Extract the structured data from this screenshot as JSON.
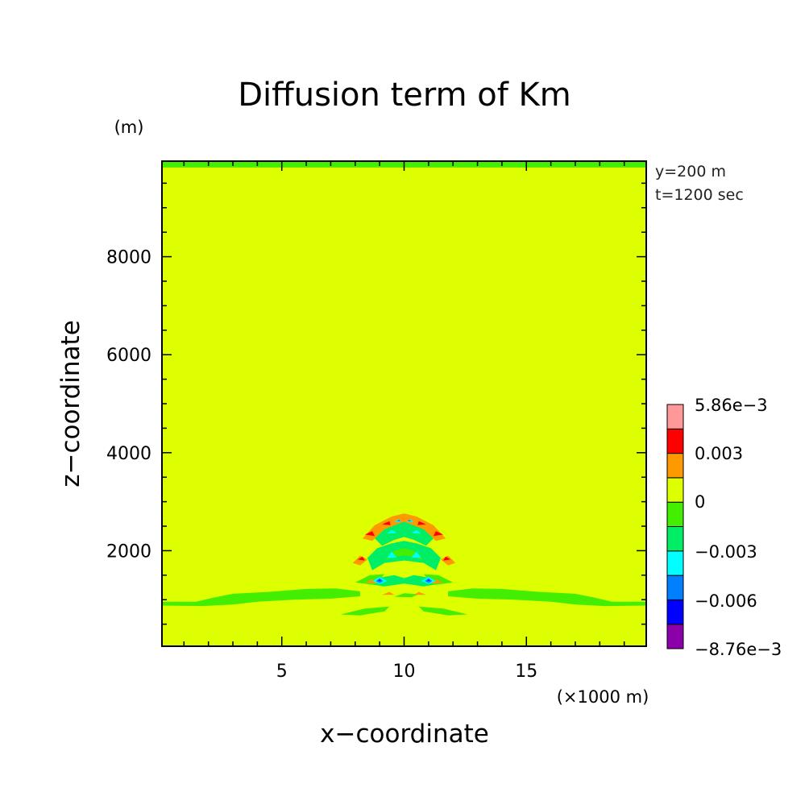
{
  "chart_data": {
    "type": "heatmap",
    "title": "Diffusion term of Km",
    "xlabel": "x−coordinate",
    "ylabel": "z−coordinate",
    "x_unit": "(×1000 m)",
    "y_unit": "(m)",
    "info": [
      "y=200 m",
      "t=1200 sec"
    ],
    "xlim": [
      0.1,
      19.9
    ],
    "ylim": [
      50,
      9950
    ],
    "x_ticks": [
      5,
      10,
      15
    ],
    "x_tick_labels": [
      "5",
      "10",
      "15"
    ],
    "y_ticks": [
      2000,
      4000,
      6000,
      8000
    ],
    "y_tick_labels": [
      "2000",
      "4000",
      "6000",
      "8000"
    ],
    "colorbar": {
      "levels": [
        -0.00876,
        -0.006,
        -0.0045,
        -0.003,
        -0.0015,
        0,
        0.0015,
        0.003,
        0.0045,
        0.00586
      ],
      "labels": [
        "5.86e−3",
        "0.003",
        "0",
        "−0.003",
        "−0.006",
        "−8.76e−3"
      ],
      "colors": [
        "#8b00aa",
        "#0000ff",
        "#0080ff",
        "#00ffff",
        "#00ee66",
        "#44ee00",
        "#ddff00",
        "#ff9900",
        "#ff0000",
        "#ff9999"
      ]
    },
    "background_level_color": "#ddff00",
    "regions": [
      {
        "name": "top-boundary-band",
        "color": "#44ee00",
        "points": [
          [
            0.1,
            9950
          ],
          [
            19.9,
            9950
          ],
          [
            19.9,
            9820
          ],
          [
            0.1,
            9820
          ]
        ]
      },
      {
        "name": "left-low-band",
        "color": "#44ee00",
        "points": [
          [
            0.1,
            960
          ],
          [
            1.5,
            960
          ],
          [
            2.2,
            1040
          ],
          [
            3,
            1120
          ],
          [
            4.5,
            1160
          ],
          [
            6,
            1220
          ],
          [
            7.2,
            1230
          ],
          [
            8.2,
            1170
          ],
          [
            8.2,
            1070
          ],
          [
            7,
            1020
          ],
          [
            5.5,
            1000
          ],
          [
            4,
            960
          ],
          [
            3,
            900
          ],
          [
            1.8,
            870
          ],
          [
            0.1,
            880
          ]
        ]
      },
      {
        "name": "right-low-band",
        "color": "#44ee00",
        "points": [
          [
            19.9,
            960
          ],
          [
            18.5,
            960
          ],
          [
            17.8,
            1040
          ],
          [
            17,
            1120
          ],
          [
            15.5,
            1160
          ],
          [
            14,
            1220
          ],
          [
            12.8,
            1230
          ],
          [
            11.8,
            1170
          ],
          [
            11.8,
            1070
          ],
          [
            13,
            1020
          ],
          [
            14.5,
            1000
          ],
          [
            16,
            960
          ],
          [
            17,
            900
          ],
          [
            18.2,
            870
          ],
          [
            19.9,
            880
          ]
        ]
      },
      {
        "name": "lower-left-patch",
        "color": "#44ee00",
        "points": [
          [
            7.4,
            700
          ],
          [
            8.4,
            820
          ],
          [
            9.4,
            860
          ],
          [
            9.2,
            760
          ],
          [
            8.2,
            680
          ]
        ]
      },
      {
        "name": "lower-right-patch",
        "color": "#44ee00",
        "points": [
          [
            12.6,
            700
          ],
          [
            11.6,
            820
          ],
          [
            10.6,
            860
          ],
          [
            10.8,
            760
          ],
          [
            11.8,
            680
          ]
        ]
      },
      {
        "name": "lower-center-patch",
        "color": "#44ee00",
        "points": [
          [
            9.6,
            1060
          ],
          [
            10,
            1130
          ],
          [
            10.6,
            1110
          ],
          [
            10.3,
            1050
          ]
        ]
      },
      {
        "name": "upper-arch-orange",
        "color": "#ff9900",
        "points": [
          [
            8.3,
            2250
          ],
          [
            8.8,
            2520
          ],
          [
            9.5,
            2700
          ],
          [
            10,
            2760
          ],
          [
            10.5,
            2700
          ],
          [
            11.2,
            2520
          ],
          [
            11.7,
            2250
          ],
          [
            11.3,
            2200
          ],
          [
            10.8,
            2440
          ],
          [
            10,
            2580
          ],
          [
            9.2,
            2440
          ],
          [
            8.7,
            2200
          ]
        ]
      },
      {
        "name": "upper-arch-green",
        "color": "#00ee66",
        "points": [
          [
            8.8,
            2250
          ],
          [
            9.2,
            2440
          ],
          [
            10,
            2590
          ],
          [
            10.8,
            2440
          ],
          [
            11.2,
            2250
          ],
          [
            10.9,
            2100
          ],
          [
            10.4,
            2220
          ],
          [
            10,
            2280
          ],
          [
            9.6,
            2220
          ],
          [
            9.1,
            2100
          ]
        ]
      },
      {
        "name": "middle-body-green",
        "color": "#00ee66",
        "points": [
          [
            8.7,
            1600
          ],
          [
            8.5,
            1850
          ],
          [
            8.9,
            2050
          ],
          [
            9.5,
            2150
          ],
          [
            10,
            2200
          ],
          [
            10.5,
            2150
          ],
          [
            11.1,
            2050
          ],
          [
            11.5,
            1850
          ],
          [
            11.3,
            1600
          ],
          [
            10.8,
            1750
          ],
          [
            10,
            1800
          ],
          [
            9.2,
            1750
          ]
        ]
      },
      {
        "name": "middle-body-lime",
        "color": "#44ee00",
        "points": [
          [
            9.2,
            1800
          ],
          [
            9.6,
            2000
          ],
          [
            10,
            2050
          ],
          [
            10.4,
            2000
          ],
          [
            10.8,
            1800
          ],
          [
            10.4,
            1880
          ],
          [
            10,
            1900
          ],
          [
            9.6,
            1880
          ]
        ]
      },
      {
        "name": "lower-body-green",
        "color": "#00ee66",
        "points": [
          [
            8.6,
            1320
          ],
          [
            9.0,
            1450
          ],
          [
            9.6,
            1500
          ],
          [
            10,
            1440
          ],
          [
            10.4,
            1500
          ],
          [
            11.0,
            1450
          ],
          [
            11.4,
            1320
          ],
          [
            10.8,
            1270
          ],
          [
            10,
            1330
          ],
          [
            9.2,
            1270
          ]
        ]
      },
      {
        "name": "left-foot-green",
        "color": "#44ee00",
        "points": [
          [
            8.0,
            1350
          ],
          [
            8.6,
            1500
          ],
          [
            9.2,
            1520
          ],
          [
            8.8,
            1300
          ]
        ]
      },
      {
        "name": "right-foot-green",
        "color": "#44ee00",
        "points": [
          [
            12.0,
            1350
          ],
          [
            11.4,
            1500
          ],
          [
            10.8,
            1520
          ],
          [
            11.2,
            1300
          ]
        ]
      },
      {
        "name": "left-side-orange",
        "color": "#ff9900",
        "points": [
          [
            7.9,
            1750
          ],
          [
            8.2,
            1900
          ],
          [
            8.5,
            1820
          ],
          [
            8.2,
            1700
          ]
        ]
      },
      {
        "name": "right-side-orange",
        "color": "#ff9900",
        "points": [
          [
            12.1,
            1750
          ],
          [
            11.8,
            1900
          ],
          [
            11.5,
            1820
          ],
          [
            11.8,
            1700
          ]
        ]
      },
      {
        "name": "left-lower-orange",
        "color": "#ff9900",
        "points": [
          [
            8.4,
            1350
          ],
          [
            8.7,
            1420
          ],
          [
            8.9,
            1330
          ]
        ]
      },
      {
        "name": "right-lower-orange",
        "color": "#ff9900",
        "points": [
          [
            11.6,
            1350
          ],
          [
            11.3,
            1420
          ],
          [
            11.1,
            1330
          ]
        ]
      },
      {
        "name": "bottom-orange-left",
        "color": "#ff9900",
        "points": [
          [
            9.1,
            1100
          ],
          [
            9.4,
            1160
          ],
          [
            9.6,
            1100
          ]
        ]
      },
      {
        "name": "bottom-orange-right",
        "color": "#ff9900",
        "points": [
          [
            10.9,
            1100
          ],
          [
            10.6,
            1160
          ],
          [
            10.4,
            1100
          ]
        ]
      },
      {
        "name": "red-dot-1",
        "color": "#ff0000",
        "points": [
          [
            8.4,
            2330
          ],
          [
            8.7,
            2400
          ],
          [
            8.8,
            2300
          ]
        ]
      },
      {
        "name": "red-dot-2",
        "color": "#ff0000",
        "points": [
          [
            9.1,
            2540
          ],
          [
            9.4,
            2600
          ],
          [
            9.45,
            2520
          ]
        ]
      },
      {
        "name": "red-dot-3",
        "color": "#ff0000",
        "points": [
          [
            10.55,
            2520
          ],
          [
            10.6,
            2600
          ],
          [
            10.9,
            2540
          ]
        ]
      },
      {
        "name": "red-dot-4",
        "color": "#ff0000",
        "points": [
          [
            11.2,
            2300
          ],
          [
            11.3,
            2400
          ],
          [
            11.6,
            2330
          ]
        ]
      },
      {
        "name": "red-dot-5",
        "color": "#ff0000",
        "points": [
          [
            8.1,
            1820
          ],
          [
            8.3,
            1880
          ],
          [
            8.4,
            1800
          ]
        ]
      },
      {
        "name": "red-dot-6",
        "color": "#ff0000",
        "points": [
          [
            11.6,
            1800
          ],
          [
            11.7,
            1880
          ],
          [
            11.9,
            1820
          ]
        ]
      },
      {
        "name": "cyan-spot-1",
        "color": "#00ffff",
        "points": [
          [
            9.3,
            2350
          ],
          [
            9.5,
            2420
          ],
          [
            9.7,
            2360
          ]
        ]
      },
      {
        "name": "cyan-spot-2",
        "color": "#00ffff",
        "points": [
          [
            9.6,
            2580
          ],
          [
            9.75,
            2640
          ],
          [
            9.9,
            2590
          ]
        ]
      },
      {
        "name": "cyan-spot-3",
        "color": "#00ffff",
        "points": [
          [
            10.1,
            2590
          ],
          [
            10.25,
            2640
          ],
          [
            10.4,
            2580
          ]
        ]
      },
      {
        "name": "cyan-spot-4",
        "color": "#00ffff",
        "points": [
          [
            10.3,
            2360
          ],
          [
            10.5,
            2420
          ],
          [
            10.7,
            2350
          ]
        ]
      },
      {
        "name": "cyan-spot-5",
        "color": "#00ffff",
        "points": [
          [
            9.3,
            1850
          ],
          [
            9.5,
            1980
          ],
          [
            9.7,
            1860
          ]
        ]
      },
      {
        "name": "cyan-spot-6",
        "color": "#00ffff",
        "points": [
          [
            10.3,
            1860
          ],
          [
            10.5,
            1980
          ],
          [
            10.7,
            1850
          ]
        ]
      },
      {
        "name": "cyan-spot-7",
        "color": "#00ffff",
        "points": [
          [
            8.7,
            1380
          ],
          [
            9.0,
            1470
          ],
          [
            9.3,
            1380
          ],
          [
            9.0,
            1320
          ]
        ]
      },
      {
        "name": "cyan-spot-8",
        "color": "#00ffff",
        "points": [
          [
            10.7,
            1380
          ],
          [
            11.0,
            1470
          ],
          [
            11.3,
            1380
          ],
          [
            11.0,
            1320
          ]
        ]
      },
      {
        "name": "blue-spot-1",
        "color": "#0080ff",
        "points": [
          [
            8.85,
            1380
          ],
          [
            9.0,
            1440
          ],
          [
            9.15,
            1380
          ],
          [
            9.0,
            1340
          ]
        ]
      },
      {
        "name": "blue-spot-2",
        "color": "#0080ff",
        "points": [
          [
            10.85,
            1380
          ],
          [
            11.0,
            1440
          ],
          [
            11.15,
            1380
          ],
          [
            11.0,
            1340
          ]
        ]
      },
      {
        "name": "deep-blue-spot-1",
        "color": "#0000ff",
        "points": [
          [
            8.95,
            1385
          ],
          [
            9.0,
            1415
          ],
          [
            9.05,
            1385
          ]
        ]
      },
      {
        "name": "deep-blue-spot-2",
        "color": "#0000ff",
        "points": [
          [
            10.95,
            1385
          ],
          [
            11.0,
            1415
          ],
          [
            11.05,
            1385
          ]
        ]
      },
      {
        "name": "blue-spot-3",
        "color": "#0080ff",
        "points": [
          [
            9.7,
            2600
          ],
          [
            9.8,
            2630
          ],
          [
            9.85,
            2600
          ]
        ]
      },
      {
        "name": "blue-spot-4",
        "color": "#0080ff",
        "points": [
          [
            10.15,
            2600
          ],
          [
            10.2,
            2630
          ],
          [
            10.3,
            2600
          ]
        ]
      }
    ]
  }
}
